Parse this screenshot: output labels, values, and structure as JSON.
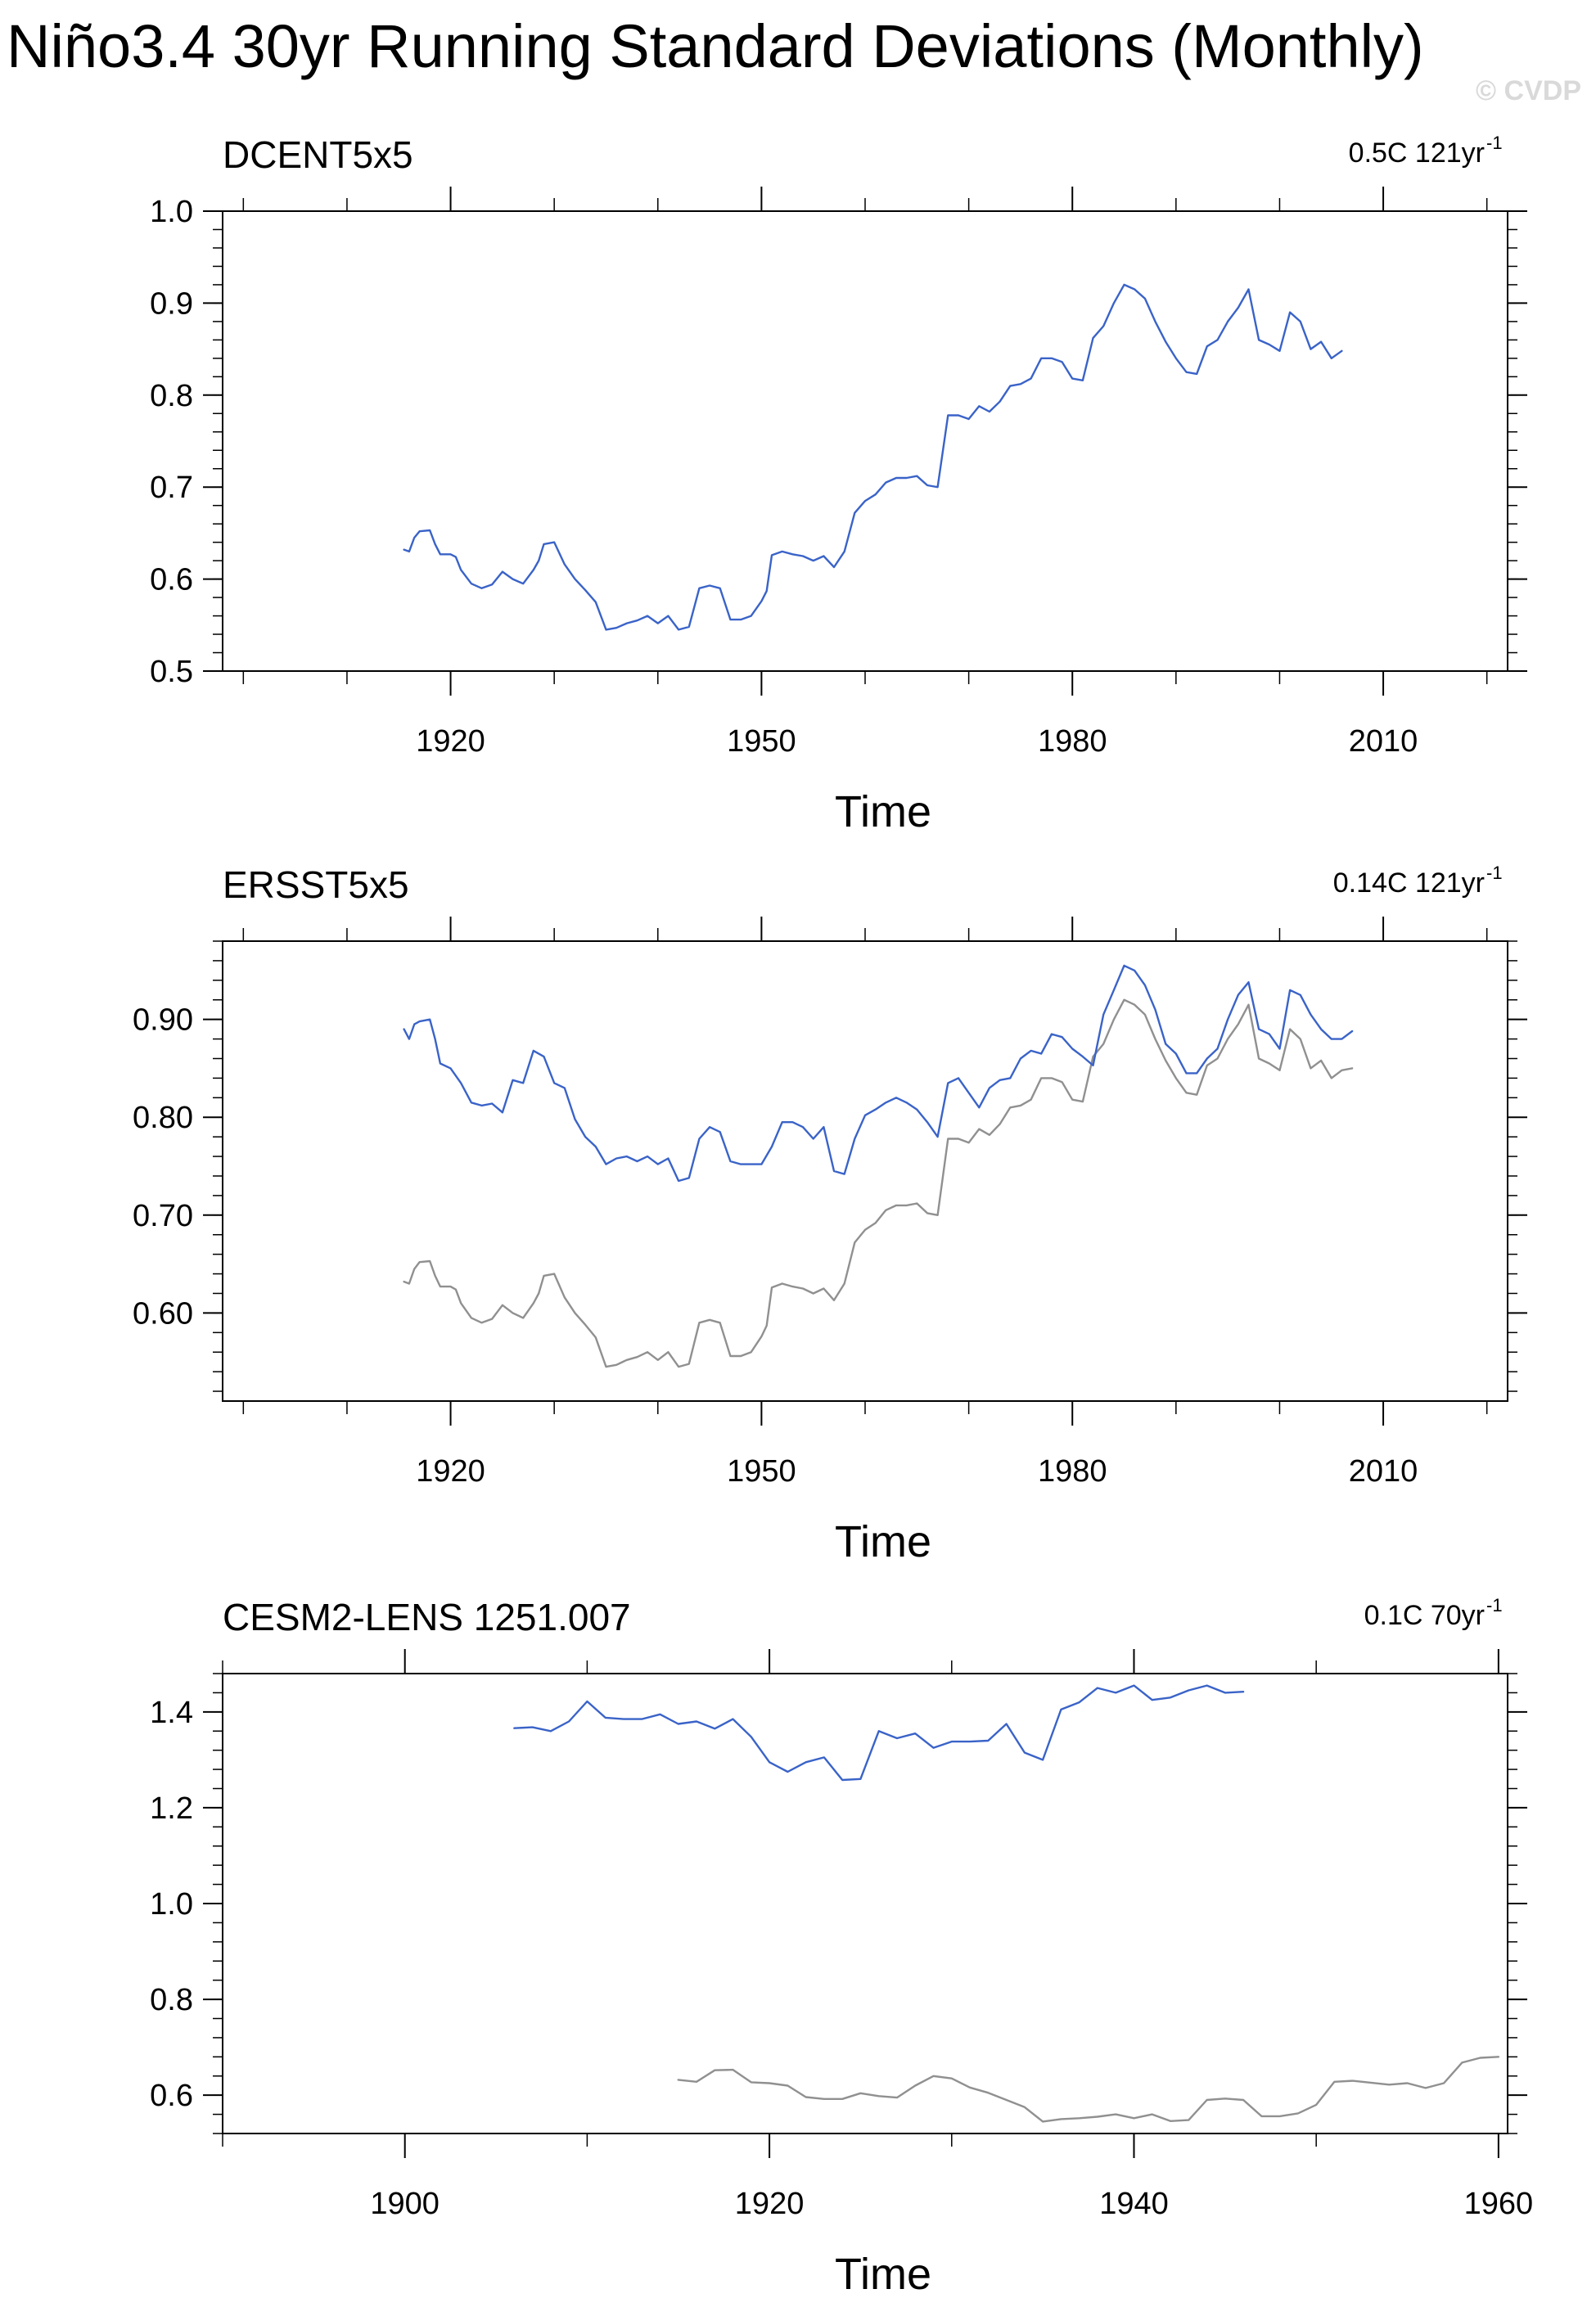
{
  "figure": {
    "title": "Niño3.4 30yr Running Standard Deviations (Monthly)",
    "watermark": "© CVDP"
  },
  "colors": {
    "primary": "#3a63c8",
    "reference": "#909090",
    "axis": "#000000"
  },
  "chart_data": [
    {
      "type": "line",
      "title": "DCENT5x5",
      "annotation": "0.5C 121yr",
      "annotation_sup": "-1",
      "xlabel": "Time",
      "ylabel": "",
      "xlim": [
        1898,
        2022
      ],
      "ylim": [
        0.5,
        1.0
      ],
      "xticks": [
        1920,
        1950,
        1980,
        2010
      ],
      "xtick_labels": [
        "1920",
        "1950",
        "1980",
        "2010"
      ],
      "yticks": [
        0.5,
        0.6,
        0.7,
        0.8,
        0.9,
        1.0
      ],
      "ytick_labels": [
        "0.5",
        "0.6",
        "0.7",
        "0.8",
        "0.9",
        "1.0"
      ],
      "grid": false,
      "series": [
        {
          "role": "primary",
          "x": [
            1915.5,
            1916.0,
            1916.5,
            1917.0,
            1918.0,
            1918.5,
            1919.0,
            1920.0,
            1920.5,
            1921.0,
            1922.0,
            1923.0,
            1924.0,
            1925.0,
            1926.0,
            1927.0,
            1928.0,
            1928.5,
            1929.0,
            1930.0,
            1931.0,
            1932.0,
            1933.0,
            1934.0,
            1935.0,
            1936.0,
            1937.0,
            1938.0,
            1939.0,
            1940.0,
            1941.0,
            1942.0,
            1943.0,
            1944.0,
            1945.0,
            1946.0,
            1947.0,
            1948.0,
            1949.0,
            1950.0,
            1950.5,
            1951.0,
            1952.0,
            1953.0,
            1954.0,
            1955.0,
            1956.0,
            1957.0,
            1958.0,
            1959.0,
            1960.0,
            1961.0,
            1962.0,
            1963.0,
            1964.0,
            1965.0,
            1966.0,
            1967.0,
            1968.0,
            1969.0,
            1970.0,
            1971.0,
            1972.0,
            1973.0,
            1974.0,
            1975.0,
            1976.0,
            1977.0,
            1978.0,
            1979.0,
            1980.0,
            1981.0,
            1982.0,
            1983.0,
            1984.0,
            1985.0,
            1986.0,
            1987.0,
            1988.0,
            1989.0,
            1990.0,
            1991.0,
            1992.0,
            1993.0,
            1994.0,
            1995.0,
            1996.0,
            1997.0,
            1998.0,
            1999.0,
            2000.0,
            2001.0,
            2002.0,
            2003.0,
            2004.0,
            2005.0,
            2006.0
          ],
          "y": [
            0.632,
            0.63,
            0.645,
            0.652,
            0.653,
            0.638,
            0.627,
            0.627,
            0.624,
            0.61,
            0.595,
            0.59,
            0.594,
            0.608,
            0.6,
            0.595,
            0.61,
            0.62,
            0.638,
            0.64,
            0.616,
            0.6,
            0.588,
            0.575,
            0.545,
            0.547,
            0.552,
            0.555,
            0.56,
            0.552,
            0.56,
            0.545,
            0.548,
            0.59,
            0.593,
            0.59,
            0.556,
            0.556,
            0.56,
            0.576,
            0.587,
            0.626,
            0.63,
            0.627,
            0.625,
            0.62,
            0.625,
            0.613,
            0.63,
            0.672,
            0.685,
            0.692,
            0.705,
            0.71,
            0.71,
            0.712,
            0.702,
            0.7,
            0.778,
            0.778,
            0.774,
            0.788,
            0.782,
            0.793,
            0.81,
            0.812,
            0.818,
            0.84,
            0.84,
            0.836,
            0.818,
            0.816,
            0.862,
            0.875,
            0.9,
            0.92,
            0.915,
            0.905,
            0.88,
            0.858,
            0.84,
            0.825,
            0.823,
            0.853,
            0.86,
            0.88,
            0.895,
            0.915,
            0.86,
            0.855,
            0.848,
            0.89,
            0.88,
            0.85,
            0.858,
            0.84,
            0.848
          ]
        }
      ]
    },
    {
      "type": "line",
      "title": "ERSST5x5",
      "annotation": "0.14C 121yr",
      "annotation_sup": "-1",
      "xlabel": "Time",
      "ylabel": "",
      "xlim": [
        1898,
        2022
      ],
      "ylim": [
        0.51,
        0.98
      ],
      "xticks": [
        1920,
        1950,
        1980,
        2010
      ],
      "xtick_labels": [
        "1920",
        "1950",
        "1980",
        "2010"
      ],
      "yticks": [
        0.6,
        0.7,
        0.8,
        0.9
      ],
      "ytick_labels": [
        "0.60",
        "0.70",
        "0.80",
        "0.90"
      ],
      "grid": false,
      "series": [
        {
          "role": "primary",
          "x": [
            1915.5,
            1916.0,
            1916.5,
            1917.0,
            1918.0,
            1918.5,
            1919.0,
            1920.0,
            1921.0,
            1922.0,
            1923.0,
            1924.0,
            1925.0,
            1926.0,
            1927.0,
            1928.0,
            1929.0,
            1930.0,
            1931.0,
            1932.0,
            1933.0,
            1934.0,
            1935.0,
            1936.0,
            1937.0,
            1938.0,
            1939.0,
            1940.0,
            1941.0,
            1942.0,
            1943.0,
            1944.0,
            1945.0,
            1946.0,
            1947.0,
            1948.0,
            1949.0,
            1950.0,
            1951.0,
            1952.0,
            1953.0,
            1954.0,
            1955.0,
            1956.0,
            1957.0,
            1958.0,
            1959.0,
            1960.0,
            1961.0,
            1962.0,
            1963.0,
            1964.0,
            1965.0,
            1966.0,
            1967.0,
            1968.0,
            1969.0,
            1970.0,
            1971.0,
            1972.0,
            1973.0,
            1974.0,
            1975.0,
            1976.0,
            1977.0,
            1978.0,
            1979.0,
            1980.0,
            1981.0,
            1982.0,
            1983.0,
            1984.0,
            1985.0,
            1986.0,
            1987.0,
            1988.0,
            1989.0,
            1990.0,
            1991.0,
            1992.0,
            1993.0,
            1994.0,
            1995.0,
            1996.0,
            1997.0,
            1998.0,
            1999.0,
            2000.0,
            2001.0,
            2002.0,
            2003.0,
            2004.0,
            2005.0,
            2006.0,
            2007.0
          ],
          "y": [
            0.89,
            0.88,
            0.895,
            0.898,
            0.9,
            0.88,
            0.855,
            0.85,
            0.835,
            0.815,
            0.812,
            0.814,
            0.805,
            0.838,
            0.835,
            0.868,
            0.862,
            0.835,
            0.83,
            0.798,
            0.78,
            0.77,
            0.752,
            0.758,
            0.76,
            0.755,
            0.76,
            0.752,
            0.758,
            0.735,
            0.738,
            0.778,
            0.79,
            0.785,
            0.755,
            0.752,
            0.752,
            0.752,
            0.77,
            0.795,
            0.795,
            0.79,
            0.778,
            0.79,
            0.745,
            0.742,
            0.778,
            0.802,
            0.808,
            0.815,
            0.82,
            0.815,
            0.808,
            0.795,
            0.78,
            0.835,
            0.84,
            0.825,
            0.81,
            0.83,
            0.838,
            0.84,
            0.86,
            0.868,
            0.865,
            0.885,
            0.882,
            0.87,
            0.862,
            0.853,
            0.905,
            0.93,
            0.955,
            0.95,
            0.935,
            0.91,
            0.875,
            0.865,
            0.845,
            0.845,
            0.86,
            0.87,
            0.9,
            0.925,
            0.938,
            0.89,
            0.885,
            0.87,
            0.93,
            0.925,
            0.905,
            0.89,
            0.88,
            0.88,
            0.888
          ]
        },
        {
          "role": "reference",
          "x": [
            1915.5,
            1916.0,
            1916.5,
            1917.0,
            1918.0,
            1918.5,
            1919.0,
            1920.0,
            1920.5,
            1921.0,
            1922.0,
            1923.0,
            1924.0,
            1925.0,
            1926.0,
            1927.0,
            1928.0,
            1928.5,
            1929.0,
            1930.0,
            1931.0,
            1932.0,
            1933.0,
            1934.0,
            1935.0,
            1936.0,
            1937.0,
            1938.0,
            1939.0,
            1940.0,
            1941.0,
            1942.0,
            1943.0,
            1944.0,
            1945.0,
            1946.0,
            1947.0,
            1948.0,
            1949.0,
            1950.0,
            1950.5,
            1951.0,
            1952.0,
            1953.0,
            1954.0,
            1955.0,
            1956.0,
            1957.0,
            1958.0,
            1959.0,
            1960.0,
            1961.0,
            1962.0,
            1963.0,
            1964.0,
            1965.0,
            1966.0,
            1967.0,
            1968.0,
            1969.0,
            1970.0,
            1971.0,
            1972.0,
            1973.0,
            1974.0,
            1975.0,
            1976.0,
            1977.0,
            1978.0,
            1979.0,
            1980.0,
            1981.0,
            1982.0,
            1983.0,
            1984.0,
            1985.0,
            1986.0,
            1987.0,
            1988.0,
            1989.0,
            1990.0,
            1991.0,
            1992.0,
            1993.0,
            1994.0,
            1995.0,
            1996.0,
            1997.0,
            1998.0,
            1999.0,
            2000.0,
            2001.0,
            2002.0,
            2003.0,
            2004.0,
            2005.0,
            2006.0,
            2007.0
          ],
          "y": [
            0.632,
            0.63,
            0.645,
            0.652,
            0.653,
            0.638,
            0.627,
            0.627,
            0.624,
            0.61,
            0.595,
            0.59,
            0.594,
            0.608,
            0.6,
            0.595,
            0.61,
            0.62,
            0.638,
            0.64,
            0.616,
            0.6,
            0.588,
            0.575,
            0.545,
            0.547,
            0.552,
            0.555,
            0.56,
            0.552,
            0.56,
            0.545,
            0.548,
            0.59,
            0.593,
            0.59,
            0.556,
            0.556,
            0.56,
            0.576,
            0.587,
            0.626,
            0.63,
            0.627,
            0.625,
            0.62,
            0.625,
            0.613,
            0.63,
            0.672,
            0.685,
            0.692,
            0.705,
            0.71,
            0.71,
            0.712,
            0.702,
            0.7,
            0.778,
            0.778,
            0.774,
            0.788,
            0.782,
            0.793,
            0.81,
            0.812,
            0.818,
            0.84,
            0.84,
            0.836,
            0.818,
            0.816,
            0.862,
            0.875,
            0.9,
            0.92,
            0.915,
            0.905,
            0.88,
            0.858,
            0.84,
            0.825,
            0.823,
            0.853,
            0.86,
            0.88,
            0.895,
            0.915,
            0.86,
            0.855,
            0.848,
            0.89,
            0.88,
            0.85,
            0.858,
            0.84,
            0.848,
            0.85
          ]
        }
      ]
    },
    {
      "type": "line",
      "title": "CESM2-LENS 1251.007",
      "annotation": "0.1C 70yr",
      "annotation_sup": "-1",
      "xlabel": "Time",
      "ylabel": "",
      "xlim": [
        1890,
        1960.5
      ],
      "ylim": [
        0.52,
        1.48
      ],
      "xticks": [
        1900,
        1920,
        1940,
        1960
      ],
      "xtick_labels": [
        "1900",
        "1920",
        "1940",
        "1960"
      ],
      "yticks": [
        0.6,
        0.8,
        1.0,
        1.2,
        1.4
      ],
      "ytick_labels": [
        "0.6",
        "0.8",
        "1.0",
        "1.2",
        "1.4"
      ],
      "grid": false,
      "series": [
        {
          "role": "primary",
          "x": [
            1906.0,
            1907.0,
            1908.0,
            1909.0,
            1910.0,
            1911.0,
            1912.0,
            1913.0,
            1914.0,
            1915.0,
            1916.0,
            1917.0,
            1918.0,
            1919.0,
            1920.0,
            1921.0,
            1922.0,
            1923.0,
            1924.0,
            1925.0,
            1926.0,
            1927.0,
            1928.0,
            1929.0,
            1930.0,
            1931.0,
            1932.0,
            1933.0,
            1934.0,
            1935.0,
            1936.0,
            1937.0,
            1938.0,
            1939.0,
            1940.0,
            1941.0,
            1942.0,
            1943.0,
            1944.0,
            1945.0,
            1946.0
          ],
          "y": [
            1.366,
            1.368,
            1.36,
            1.38,
            1.422,
            1.388,
            1.385,
            1.385,
            1.395,
            1.375,
            1.38,
            1.365,
            1.385,
            1.348,
            1.295,
            1.275,
            1.295,
            1.305,
            1.258,
            1.26,
            1.36,
            1.345,
            1.355,
            1.325,
            1.338,
            1.338,
            1.34,
            1.375,
            1.315,
            1.3,
            1.405,
            1.42,
            1.45,
            1.44,
            1.455,
            1.425,
            1.43,
            1.445,
            1.455,
            1.44,
            1.442
          ]
        },
        {
          "role": "reference",
          "x": [
            1915.0,
            1916.0,
            1917.0,
            1918.0,
            1919.0,
            1920.0,
            1921.0,
            1922.0,
            1923.0,
            1924.0,
            1925.0,
            1926.0,
            1927.0,
            1928.0,
            1929.0,
            1930.0,
            1931.0,
            1932.0,
            1933.0,
            1934.0,
            1935.0,
            1936.0,
            1937.0,
            1938.0,
            1939.0,
            1940.0,
            1941.0,
            1942.0,
            1943.0,
            1944.0,
            1945.0,
            1946.0,
            1947.0,
            1948.0,
            1949.0,
            1950.0,
            1951.0,
            1952.0,
            1953.0,
            1954.0,
            1955.0,
            1956.0,
            1957.0,
            1958.0,
            1959.0,
            1960.0
          ],
          "y": [
            0.632,
            0.628,
            0.652,
            0.653,
            0.627,
            0.625,
            0.62,
            0.596,
            0.592,
            0.592,
            0.604,
            0.598,
            0.595,
            0.62,
            0.64,
            0.635,
            0.616,
            0.605,
            0.59,
            0.575,
            0.545,
            0.55,
            0.552,
            0.555,
            0.56,
            0.552,
            0.56,
            0.546,
            0.548,
            0.59,
            0.593,
            0.59,
            0.556,
            0.556,
            0.562,
            0.58,
            0.628,
            0.63,
            0.626,
            0.622,
            0.625,
            0.615,
            0.625,
            0.668,
            0.678,
            0.68
          ]
        }
      ]
    }
  ]
}
